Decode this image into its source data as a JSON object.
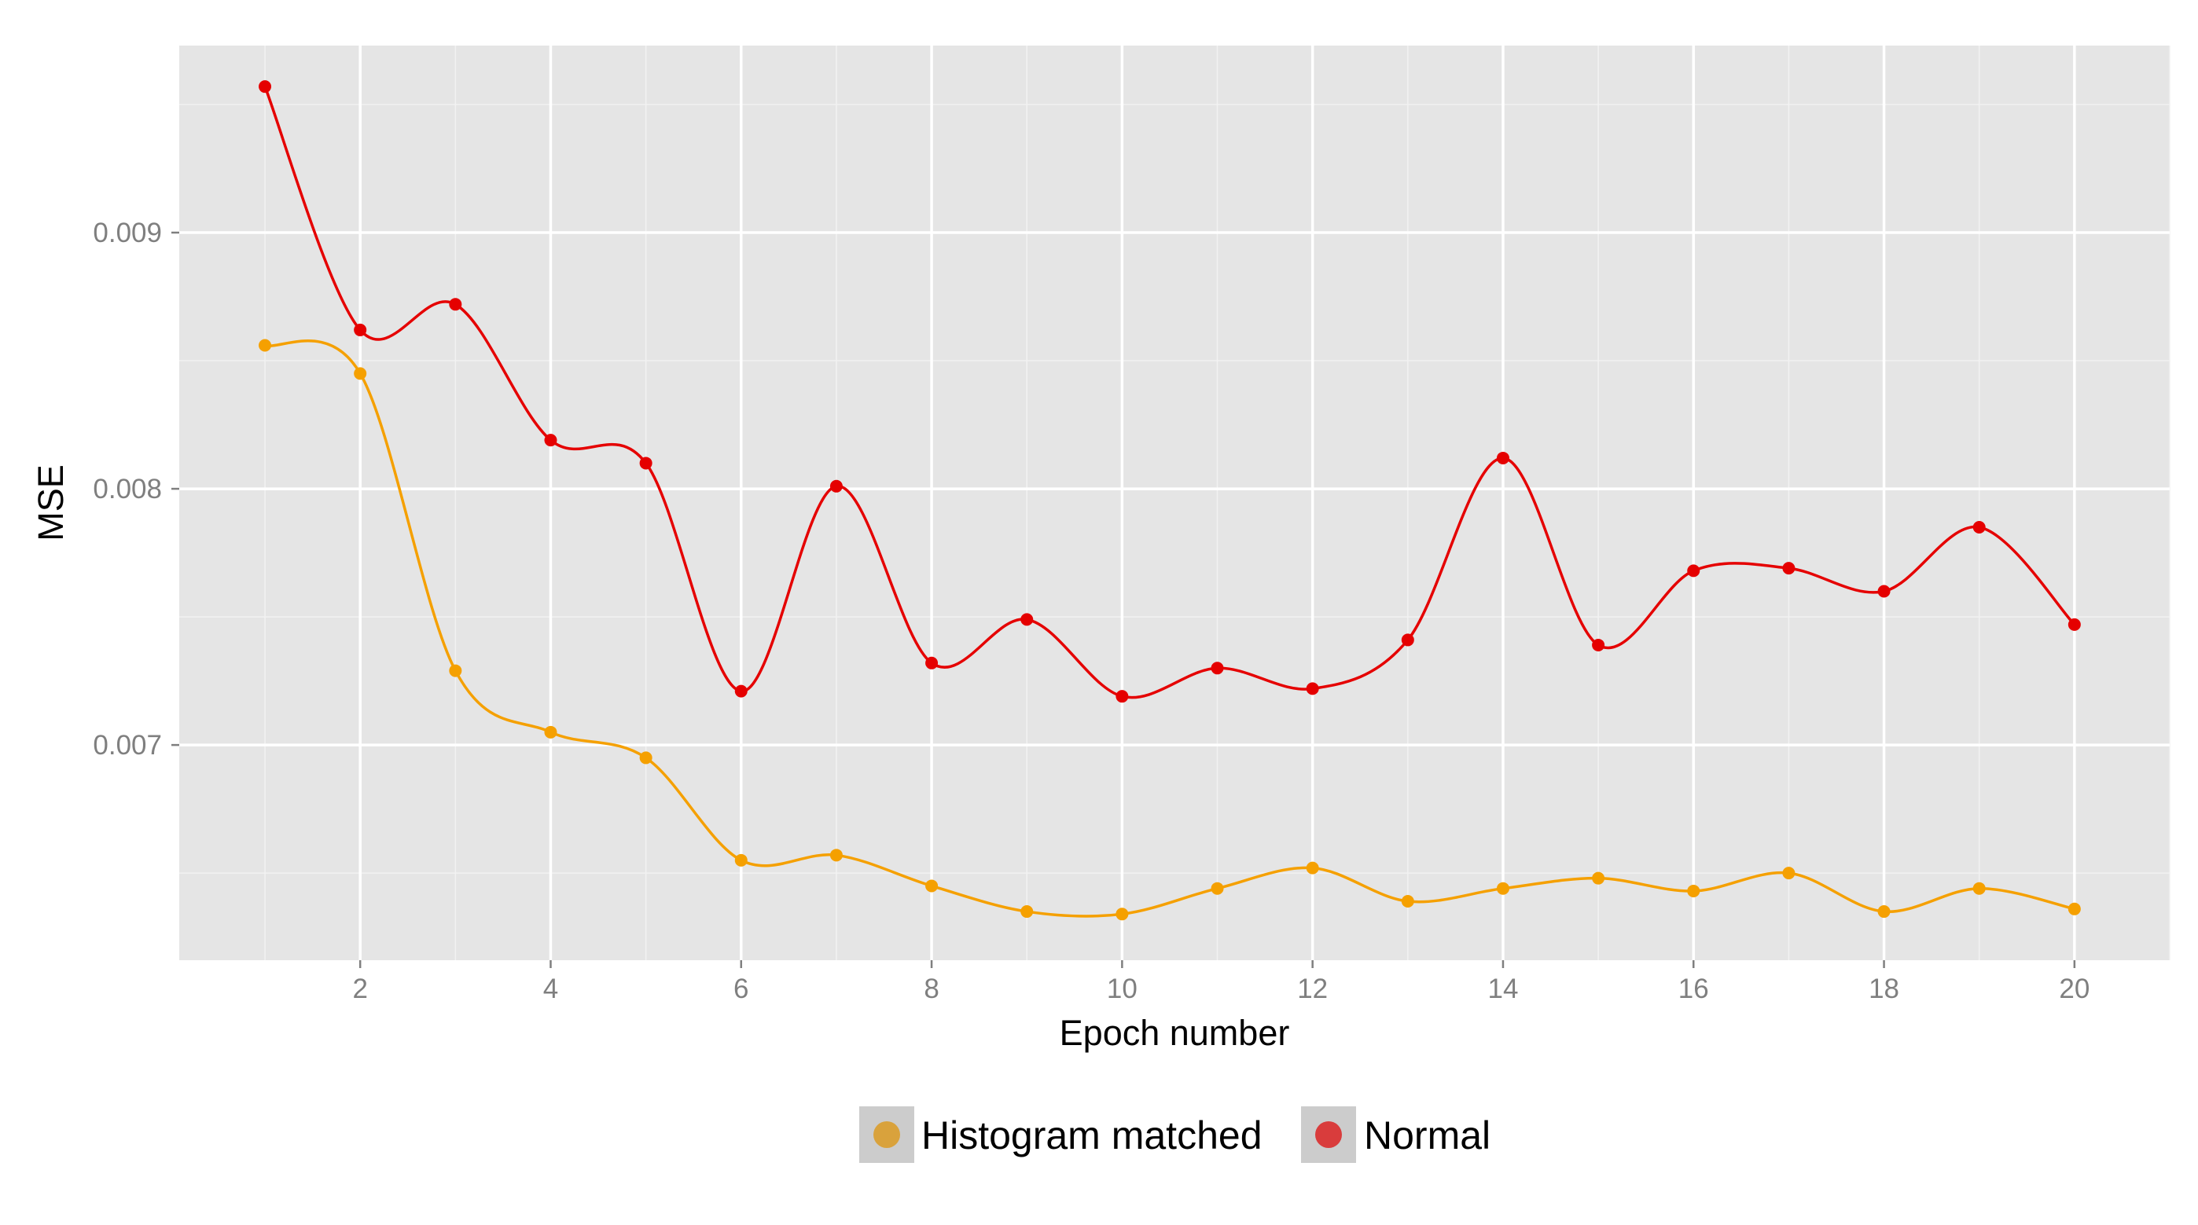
{
  "chart_data": {
    "type": "line",
    "title": "",
    "xlabel": "Epoch number",
    "ylabel": "MSE",
    "xlim": [
      0.1,
      21.0
    ],
    "ylim": [
      0.00616,
      0.00973
    ],
    "x_ticks": [
      2,
      4,
      6,
      8,
      10,
      12,
      14,
      16,
      18,
      20
    ],
    "x_tick_labels": [
      "2",
      "4",
      "6",
      "8",
      "10",
      "12",
      "14",
      "16",
      "18",
      "20"
    ],
    "y_ticks": [
      0.007,
      0.008,
      0.009
    ],
    "y_tick_labels": [
      "0.007",
      "0.008",
      "0.009"
    ],
    "grid": true,
    "legend_position": "bottom",
    "x": [
      1,
      2,
      3,
      4,
      5,
      6,
      7,
      8,
      9,
      10,
      11,
      12,
      13,
      14,
      15,
      16,
      17,
      18,
      19,
      20
    ],
    "series": [
      {
        "name": "Histogram matched",
        "color": "#f5a000",
        "legend_color": "#d9a23c",
        "values": [
          0.00856,
          0.00845,
          0.00729,
          0.00705,
          0.00695,
          0.00655,
          0.00657,
          0.00645,
          0.00635,
          0.00634,
          0.00644,
          0.00652,
          0.00639,
          0.00644,
          0.00648,
          0.00643,
          0.0065,
          0.00635,
          0.00644,
          0.00636
        ]
      },
      {
        "name": "Normal",
        "color": "#e50000",
        "legend_color": "#d93c3c",
        "values": [
          0.00957,
          0.00862,
          0.00872,
          0.00819,
          0.0081,
          0.00721,
          0.00801,
          0.00732,
          0.00749,
          0.00719,
          0.0073,
          0.00722,
          0.00741,
          0.00812,
          0.00739,
          0.00768,
          0.00769,
          0.0076,
          0.00785,
          0.00747
        ]
      }
    ]
  }
}
